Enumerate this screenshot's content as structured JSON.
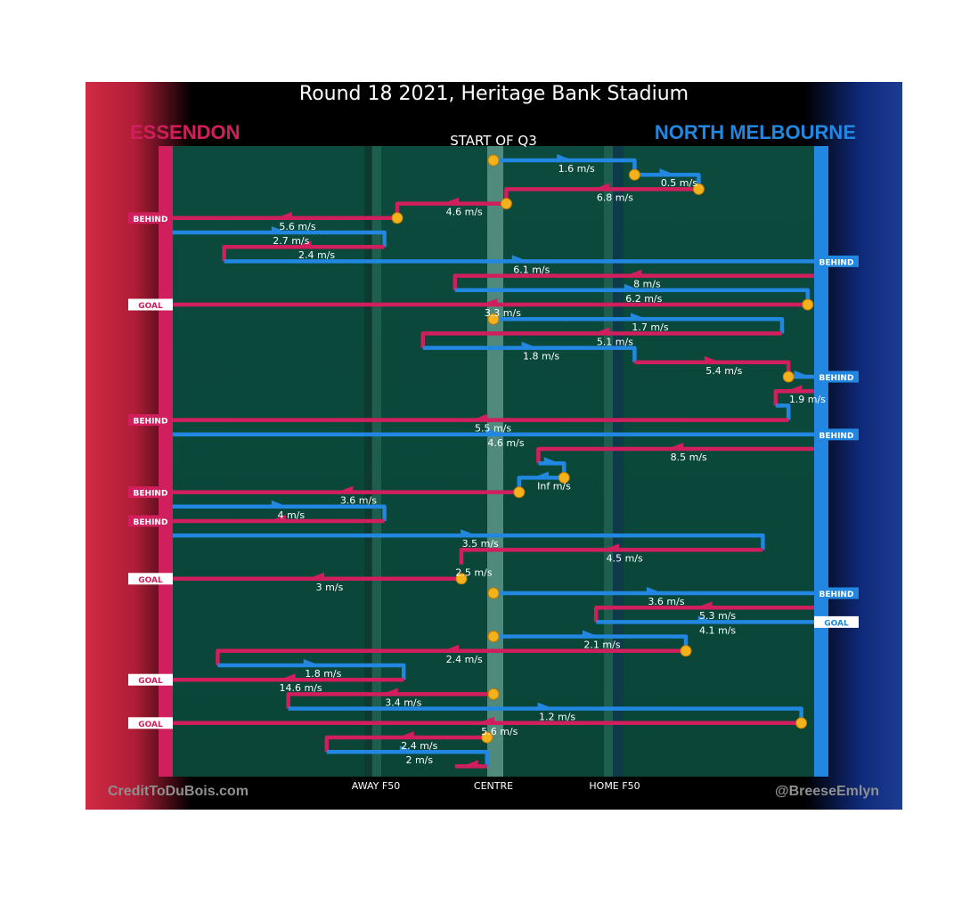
{
  "header": {
    "title": "Round 18 2021, Heritage Bank Stadium",
    "team_away": "ESSENDON",
    "team_home": "NORTH MELBOURNE",
    "period_label": "START OF Q3"
  },
  "footer": {
    "credit_left": "CreditToDuBois.com",
    "credit_right": "@BreeseEmlyn"
  },
  "colors": {
    "essendon": "#d01f5c",
    "north_melbourne": "#2287e0",
    "field": "#0b4a3d",
    "start_marker": "#f3b21c"
  },
  "chart_data": {
    "type": "line",
    "x_axis_labels": [
      "AWAY F50",
      "CENTRE",
      "HOME F50"
    ],
    "chains": [
      {
        "team": "north_melbourne",
        "speed": "1.6 m/s",
        "start_marker": true,
        "x": [
          0.5,
          0.72,
          0.72
        ]
      },
      {
        "team": "north_melbourne",
        "speed": "0.5 m/s",
        "start_marker": true,
        "x": [
          0.72,
          0.82,
          0.82
        ]
      },
      {
        "team": "essendon",
        "speed": "6.8 m/s",
        "start_marker": true,
        "x": [
          0.82,
          0.52,
          0.52
        ]
      },
      {
        "team": "essendon",
        "speed": "4.6 m/s",
        "start_marker": true,
        "x": [
          0.52,
          0.35,
          0.35
        ]
      },
      {
        "team": "essendon",
        "speed": "5.6 m/s",
        "start_marker": true,
        "x": [
          0.35,
          0.0
        ],
        "result": "BEHIND"
      },
      {
        "team": "north_melbourne",
        "speed": "2.7 m/s",
        "x": [
          0.0,
          0.33,
          0.33
        ]
      },
      {
        "team": "essendon",
        "speed": "2.4 m/s",
        "x": [
          0.33,
          0.08,
          0.08
        ]
      },
      {
        "team": "north_melbourne",
        "speed": "6.1 m/s",
        "x": [
          0.08,
          1.0
        ],
        "result": "BEHIND"
      },
      {
        "team": "essendon",
        "speed": "8 m/s",
        "x": [
          1.0,
          0.44,
          0.44
        ]
      },
      {
        "team": "north_melbourne",
        "speed": "6.2 m/s",
        "x": [
          0.44,
          0.99,
          0.99
        ]
      },
      {
        "team": "essendon",
        "speed": "3.3 m/s",
        "start_marker": true,
        "x": [
          0.99,
          0.0
        ],
        "result": "GOAL"
      },
      {
        "team": "north_melbourne",
        "speed": "1.7 m/s",
        "start_marker": true,
        "x": [
          0.5,
          0.95,
          0.95
        ]
      },
      {
        "team": "essendon",
        "speed": "5.1 m/s",
        "x": [
          0.95,
          0.39,
          0.39
        ]
      },
      {
        "team": "north_melbourne",
        "speed": "1.8 m/s",
        "x": [
          0.39,
          0.72,
          0.72
        ]
      },
      {
        "team": "essendon",
        "speed": "5.4 m/s",
        "x": [
          0.72,
          0.96,
          0.96
        ]
      },
      {
        "team": "north_melbourne",
        "speed": "",
        "start_marker": true,
        "x": [
          0.96,
          1.0
        ],
        "result": "BEHIND"
      },
      {
        "team": "essendon",
        "speed": "1.9 m/s",
        "x": [
          1.0,
          0.94,
          0.94
        ]
      },
      {
        "team": "north_melbourne",
        "speed": "",
        "x": [
          0.94,
          0.96,
          0.96
        ]
      },
      {
        "team": "essendon",
        "speed": "5.5 m/s",
        "x": [
          0.96,
          0.0
        ],
        "result": "BEHIND"
      },
      {
        "team": "north_melbourne",
        "speed": "4.6 m/s",
        "x": [
          0.0,
          1.0
        ],
        "result": "BEHIND"
      },
      {
        "team": "essendon",
        "speed": "8.5 m/s",
        "x": [
          1.0,
          0.57,
          0.57
        ]
      },
      {
        "team": "north_melbourne",
        "speed": "",
        "x": [
          0.57,
          0.61,
          0.61
        ]
      },
      {
        "team": "north_melbourne",
        "speed": "Inf m/s",
        "start_marker": true,
        "x": [
          0.61,
          0.54,
          0.54
        ]
      },
      {
        "team": "essendon",
        "speed": "3.6 m/s",
        "start_marker": true,
        "x": [
          0.54,
          0.0
        ],
        "result": "BEHIND"
      },
      {
        "team": "north_melbourne",
        "speed": "4 m/s",
        "x": [
          0.0,
          0.33,
          0.33
        ]
      },
      {
        "team": "essendon",
        "speed": "",
        "x": [
          0.33,
          0.0
        ],
        "result": "BEHIND"
      },
      {
        "team": "north_melbourne",
        "speed": "3.5 m/s",
        "x": [
          0.0,
          0.92,
          0.92
        ]
      },
      {
        "team": "essendon",
        "speed": "4.5 m/s",
        "x": [
          0.92,
          0.45,
          0.45
        ]
      },
      {
        "team": "essendon",
        "speed": "2.5 m/s",
        "x": [
          0.45,
          0.45
        ]
      },
      {
        "team": "essendon",
        "speed": "3 m/s",
        "start_marker": true,
        "x": [
          0.45,
          0.0
        ],
        "result": "GOAL"
      },
      {
        "team": "north_melbourne",
        "speed": "3.6 m/s",
        "start_marker": true,
        "x": [
          0.5,
          1.0
        ],
        "result": "BEHIND"
      },
      {
        "team": "essendon",
        "speed": "5.3 m/s",
        "x": [
          1.0,
          0.66,
          0.66
        ]
      },
      {
        "team": "north_melbourne",
        "speed": "4.1 m/s",
        "x": [
          0.66,
          1.0
        ],
        "result": "GOAL"
      },
      {
        "team": "north_melbourne",
        "speed": "2.1 m/s",
        "start_marker": true,
        "x": [
          0.5,
          0.8,
          0.8
        ]
      },
      {
        "team": "essendon",
        "speed": "2.4 m/s",
        "start_marker": true,
        "x": [
          0.8,
          0.07,
          0.07
        ]
      },
      {
        "team": "north_melbourne",
        "speed": "1.8 m/s",
        "x": [
          0.07,
          0.36,
          0.36
        ]
      },
      {
        "team": "essendon",
        "speed": "14.6 m/s",
        "x": [
          0.36,
          0.0
        ],
        "result": "GOAL"
      },
      {
        "team": "essendon",
        "speed": "3.4 m/s",
        "start_marker": true,
        "x": [
          0.5,
          0.18,
          0.18
        ]
      },
      {
        "team": "north_melbourne",
        "speed": "1.2 m/s",
        "x": [
          0.18,
          0.98,
          0.98
        ]
      },
      {
        "team": "essendon",
        "speed": "5.6 m/s",
        "start_marker": true,
        "x": [
          0.98,
          0.0
        ],
        "result": "GOAL"
      },
      {
        "team": "essendon",
        "speed": "2.4 m/s",
        "start_marker": true,
        "x": [
          0.49,
          0.24,
          0.24
        ]
      },
      {
        "team": "north_melbourne",
        "speed": "2 m/s",
        "x": [
          0.24,
          0.49,
          0.49
        ]
      },
      {
        "team": "essendon",
        "speed": "",
        "x": [
          0.49,
          0.44
        ]
      }
    ]
  }
}
